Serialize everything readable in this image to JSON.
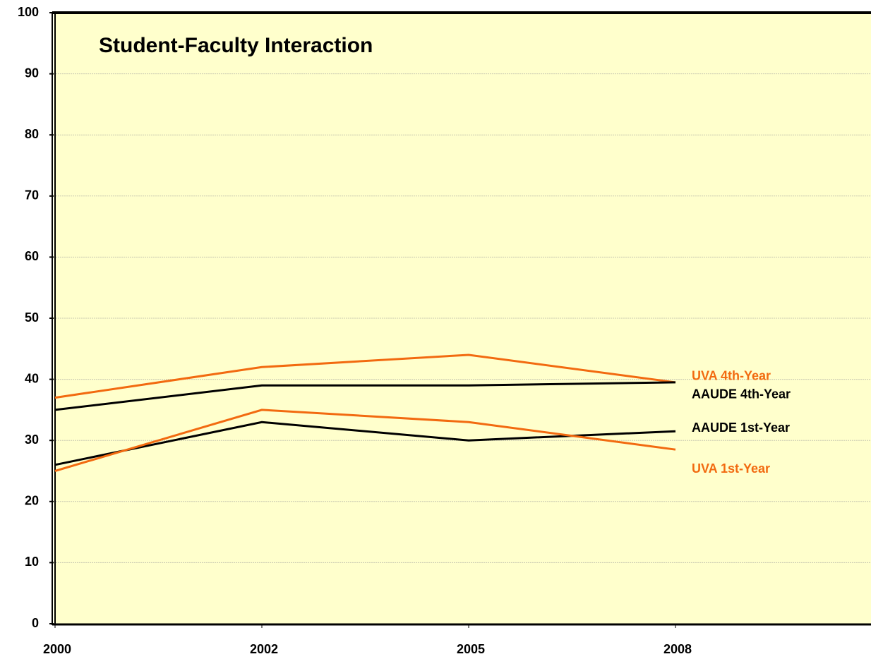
{
  "chart_data": {
    "type": "line",
    "title": "Student-Faculty Interaction",
    "categories": [
      "2000",
      "2002",
      "2005",
      "2008"
    ],
    "series": [
      {
        "name": "UVA 4th-Year",
        "color": "#f26a10",
        "values": [
          37,
          42,
          44,
          39.5
        ]
      },
      {
        "name": "AAUDE 4th-Year",
        "color": "#000000",
        "values": [
          35,
          39,
          39,
          39.5
        ]
      },
      {
        "name": "AAUDE 1st-Year",
        "color": "#000000",
        "values": [
          26,
          33,
          30,
          31.5
        ]
      },
      {
        "name": "UVA 1st-Year",
        "color": "#f26a10",
        "values": [
          25,
          35,
          33,
          28.5
        ]
      }
    ],
    "ylim": [
      0,
      100
    ],
    "yticks": [
      0,
      10,
      20,
      30,
      40,
      50,
      60,
      70,
      80,
      90,
      100
    ],
    "grid": true,
    "background": "#ffffcc"
  }
}
